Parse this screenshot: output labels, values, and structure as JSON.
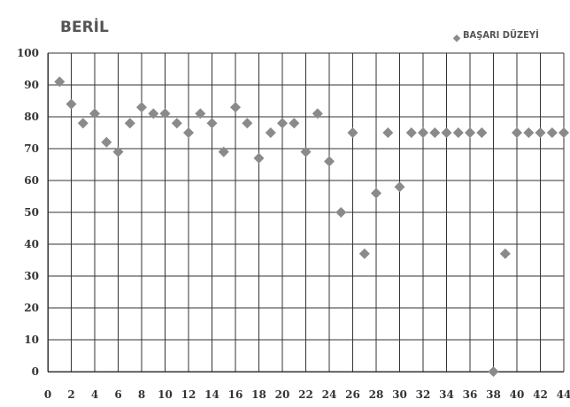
{
  "chart_data": {
    "type": "scatter",
    "title": "BERİL",
    "legend": {
      "entries": [
        "BAŞARI DÜZEYİ"
      ],
      "placement": "top-right"
    },
    "xlim": [
      0,
      44
    ],
    "ylim": [
      0,
      100
    ],
    "xticks": [
      "0",
      "2",
      "4",
      "6",
      "8",
      "10",
      "12",
      "14",
      "16",
      "18",
      "20",
      "22",
      "24",
      "26",
      "28",
      "30",
      "32",
      "34",
      "36",
      "38",
      "40",
      "42",
      "44"
    ],
    "yticks": [
      "0",
      "10",
      "20",
      "30",
      "40",
      "50",
      "60",
      "70",
      "80",
      "90",
      "100"
    ],
    "grid": true,
    "series": [
      {
        "name": "BAŞARI DÜZEYİ",
        "color": "#8a8a8a",
        "marker": "diamond",
        "x": [
          1,
          2,
          3,
          4,
          5,
          6,
          7,
          8,
          9,
          10,
          11,
          12,
          13,
          14,
          15,
          16,
          17,
          18,
          19,
          20,
          21,
          22,
          23,
          24,
          25,
          26,
          27,
          28,
          29,
          30,
          31,
          32,
          33,
          34,
          35,
          36,
          37,
          38,
          39,
          40,
          41,
          42,
          43,
          44
        ],
        "y": [
          91,
          84,
          78,
          81,
          72,
          69,
          78,
          83,
          81,
          81,
          78,
          75,
          81,
          78,
          69,
          83,
          78,
          67,
          75,
          78,
          78,
          69,
          81,
          66,
          50,
          75,
          37,
          56,
          75,
          58,
          75,
          75,
          75,
          75,
          75,
          75,
          75,
          0,
          37,
          75,
          75,
          75,
          75,
          75
        ]
      }
    ]
  }
}
